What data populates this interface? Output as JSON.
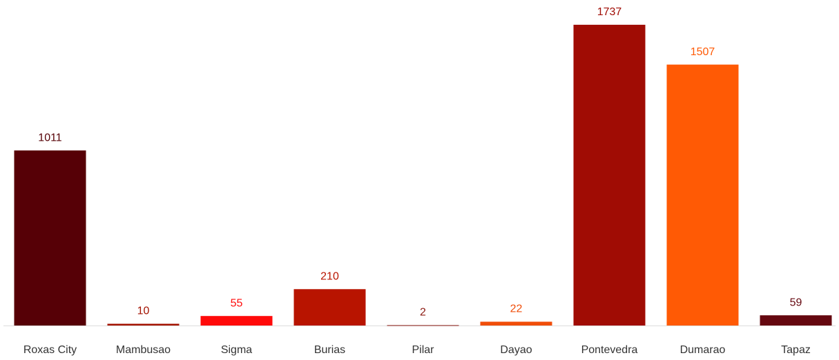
{
  "chart_data": {
    "type": "bar",
    "categories": [
      "Roxas City",
      "Mambusao",
      "Sigma",
      "Burias",
      "Pilar",
      "Dayao",
      "Pontevedra",
      "Dumarao",
      "Tapaz"
    ],
    "values": [
      1011,
      10,
      55,
      210,
      2,
      22,
      1737,
      1507,
      59
    ],
    "colors": [
      "#560006",
      "#a31200",
      "#ff0a0a",
      "#b81400",
      "#8c1a12",
      "#f04e0a",
      "#a00c04",
      "#ff5a05",
      "#650810"
    ],
    "ylim": [
      0,
      1880
    ]
  }
}
